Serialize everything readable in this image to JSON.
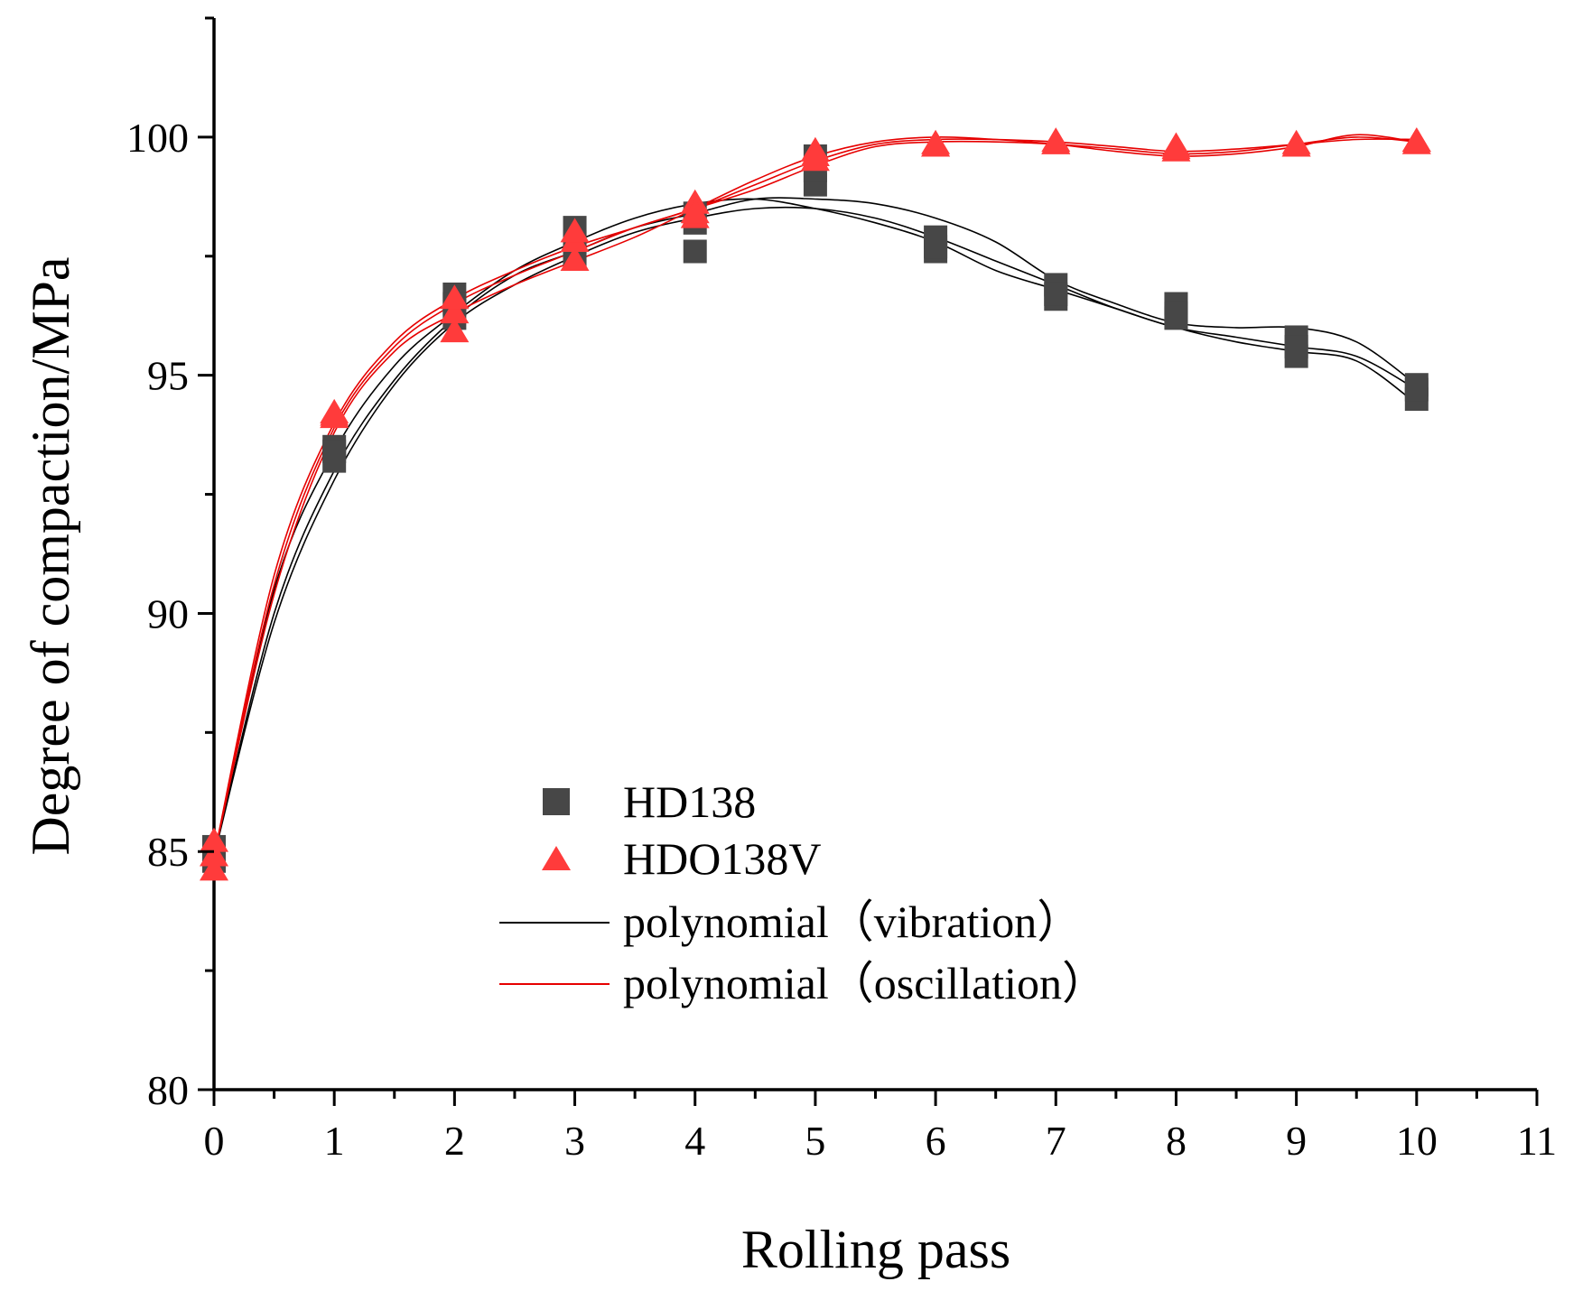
{
  "chart_data": {
    "type": "scatter",
    "title": "",
    "xlabel": "Rolling pass",
    "ylabel": "Degree of compaction/MPa",
    "xlim": [
      0,
      11
    ],
    "ylim": [
      80,
      102.5
    ],
    "xticks": [
      "0",
      "1",
      "2",
      "3",
      "4",
      "5",
      "6",
      "7",
      "8",
      "9",
      "10",
      "11"
    ],
    "yticks": [
      "80",
      "85",
      "90",
      "95",
      "100"
    ],
    "legend_position": "center-left",
    "series": [
      {
        "name": "HD138",
        "kind": "points",
        "marker": "square",
        "color": "#474747",
        "points": [
          [
            0,
            84.8
          ],
          [
            0,
            85.1
          ],
          [
            0,
            84.9
          ],
          [
            1,
            93.2
          ],
          [
            1,
            93.5
          ],
          [
            1,
            93.4
          ],
          [
            2,
            96.2
          ],
          [
            2,
            96.7
          ],
          [
            2,
            96.5
          ],
          [
            3,
            97.5
          ],
          [
            3,
            98.1
          ],
          [
            3,
            97.8
          ],
          [
            4,
            97.6
          ],
          [
            4,
            98.2
          ],
          [
            4,
            98.4
          ],
          [
            5,
            99.0
          ],
          [
            5,
            99.6
          ],
          [
            5,
            99.3
          ],
          [
            6,
            97.6
          ],
          [
            6,
            97.9
          ],
          [
            6,
            97.7
          ],
          [
            7,
            96.6
          ],
          [
            7,
            96.9
          ],
          [
            7,
            96.7
          ],
          [
            8,
            96.2
          ],
          [
            8,
            96.5
          ],
          [
            8,
            96.3
          ],
          [
            9,
            95.4
          ],
          [
            9,
            95.8
          ],
          [
            9,
            95.6
          ],
          [
            10,
            94.5
          ],
          [
            10,
            94.8
          ],
          [
            10,
            94.7
          ]
        ]
      },
      {
        "name": "HDO138V",
        "kind": "points",
        "marker": "triangle",
        "color": "#ff3b3b",
        "points": [
          [
            0,
            84.6
          ],
          [
            0,
            85.2
          ],
          [
            0,
            84.9
          ],
          [
            1,
            94.1
          ],
          [
            1,
            94.2
          ],
          [
            1,
            94.15
          ],
          [
            2,
            95.9
          ],
          [
            2,
            96.3
          ],
          [
            2,
            96.6
          ],
          [
            3,
            97.4
          ],
          [
            3,
            97.8
          ],
          [
            3,
            98.0
          ],
          [
            4,
            98.3
          ],
          [
            4,
            98.6
          ],
          [
            4,
            98.4
          ],
          [
            5,
            99.5
          ],
          [
            5,
            99.7
          ],
          [
            5,
            99.6
          ],
          [
            6,
            99.8
          ],
          [
            6,
            99.85
          ],
          [
            6,
            99.8
          ],
          [
            7,
            99.85
          ],
          [
            7,
            99.9
          ],
          [
            7,
            99.85
          ],
          [
            8,
            99.7
          ],
          [
            8,
            99.8
          ],
          [
            8,
            99.75
          ],
          [
            9,
            99.8
          ],
          [
            9,
            99.85
          ],
          [
            9,
            99.8
          ],
          [
            10,
            99.85
          ],
          [
            10,
            99.9
          ],
          [
            10,
            99.9
          ]
        ]
      },
      {
        "name": "polynomial（vibration）",
        "kind": "curves",
        "color": "#000000",
        "curves": [
          [
            [
              0,
              84.9
            ],
            [
              0.5,
              90.5
            ],
            [
              1,
              93.4
            ],
            [
              1.5,
              95.2
            ],
            [
              2,
              96.3
            ],
            [
              2.5,
              97.2
            ],
            [
              3,
              97.8
            ],
            [
              3.5,
              98.3
            ],
            [
              4,
              98.6
            ],
            [
              4.5,
              98.7
            ],
            [
              5,
              98.5
            ],
            [
              5.5,
              98.2
            ],
            [
              6,
              97.8
            ],
            [
              6.5,
              97.2
            ],
            [
              7,
              96.8
            ],
            [
              7.5,
              96.4
            ],
            [
              8,
              96.0
            ],
            [
              8.5,
              95.8
            ],
            [
              9,
              95.6
            ],
            [
              9.5,
              95.4
            ],
            [
              10,
              94.7
            ]
          ],
          [
            [
              0,
              84.9
            ],
            [
              0.5,
              90.0
            ],
            [
              1,
              93.0
            ],
            [
              1.5,
              94.9
            ],
            [
              2,
              96.2
            ],
            [
              2.5,
              97.1
            ],
            [
              3,
              97.6
            ],
            [
              3.5,
              98.1
            ],
            [
              4,
              98.4
            ],
            [
              4.5,
              98.7
            ],
            [
              5,
              98.7
            ],
            [
              5.5,
              98.6
            ],
            [
              6,
              98.3
            ],
            [
              6.5,
              97.8
            ],
            [
              7,
              97.0
            ],
            [
              7.5,
              96.5
            ],
            [
              8,
              96.1
            ],
            [
              8.5,
              96.0
            ],
            [
              9,
              96.0
            ],
            [
              9.5,
              95.7
            ],
            [
              10,
              94.8
            ]
          ],
          [
            [
              0,
              84.9
            ],
            [
              0.5,
              89.8
            ],
            [
              1,
              92.8
            ],
            [
              1.5,
              94.8
            ],
            [
              2,
              96.1
            ],
            [
              2.5,
              96.9
            ],
            [
              3,
              97.5
            ],
            [
              3.5,
              98.0
            ],
            [
              4,
              98.3
            ],
            [
              4.5,
              98.5
            ],
            [
              5,
              98.5
            ],
            [
              5.5,
              98.3
            ],
            [
              6,
              97.9
            ],
            [
              6.5,
              97.4
            ],
            [
              7,
              96.9
            ],
            [
              7.5,
              96.4
            ],
            [
              8,
              96.0
            ],
            [
              8.5,
              95.7
            ],
            [
              9,
              95.5
            ],
            [
              9.5,
              95.3
            ],
            [
              10,
              94.4
            ]
          ]
        ]
      },
      {
        "name": "polynomial（oscillation）",
        "kind": "curves",
        "color": "#e60000",
        "curves": [
          [
            [
              0,
              84.9
            ],
            [
              0.5,
              90.8
            ],
            [
              1,
              94.0
            ],
            [
              1.5,
              95.7
            ],
            [
              2,
              96.6
            ],
            [
              2.5,
              97.2
            ],
            [
              3,
              97.7
            ],
            [
              3.5,
              98.1
            ],
            [
              4,
              98.5
            ],
            [
              4.5,
              98.9
            ],
            [
              5,
              99.4
            ],
            [
              5.5,
              99.8
            ],
            [
              6,
              99.9
            ],
            [
              6.5,
              99.9
            ],
            [
              7,
              99.85
            ],
            [
              7.5,
              99.75
            ],
            [
              8,
              99.65
            ],
            [
              8.5,
              99.7
            ],
            [
              9,
              99.85
            ],
            [
              9.5,
              100.0
            ],
            [
              10,
              99.9
            ]
          ],
          [
            [
              0,
              84.9
            ],
            [
              0.5,
              90.6
            ],
            [
              1,
              93.9
            ],
            [
              1.5,
              95.6
            ],
            [
              2,
              96.5
            ],
            [
              2.5,
              97.1
            ],
            [
              3,
              97.6
            ],
            [
              3.5,
              98.1
            ],
            [
              4,
              98.5
            ],
            [
              4.5,
              99.0
            ],
            [
              5,
              99.5
            ],
            [
              5.5,
              99.85
            ],
            [
              6,
              99.95
            ],
            [
              6.5,
              99.95
            ],
            [
              7,
              99.9
            ],
            [
              7.5,
              99.8
            ],
            [
              8,
              99.7
            ],
            [
              8.5,
              99.75
            ],
            [
              9,
              99.85
            ],
            [
              9.5,
              99.95
            ],
            [
              10,
              99.95
            ]
          ],
          [
            [
              0,
              84.9
            ],
            [
              0.5,
              90.4
            ],
            [
              1,
              93.8
            ],
            [
              1.5,
              95.5
            ],
            [
              2,
              96.3
            ],
            [
              2.5,
              96.9
            ],
            [
              3,
              97.4
            ],
            [
              3.5,
              97.9
            ],
            [
              4,
              98.5
            ],
            [
              4.5,
              99.1
            ],
            [
              5,
              99.6
            ],
            [
              5.5,
              99.9
            ],
            [
              6,
              100.0
            ],
            [
              6.5,
              99.95
            ],
            [
              7,
              99.85
            ],
            [
              7.5,
              99.7
            ],
            [
              8,
              99.6
            ],
            [
              8.5,
              99.65
            ],
            [
              9,
              99.8
            ],
            [
              9.5,
              100.05
            ],
            [
              10,
              99.9
            ]
          ]
        ]
      }
    ]
  }
}
